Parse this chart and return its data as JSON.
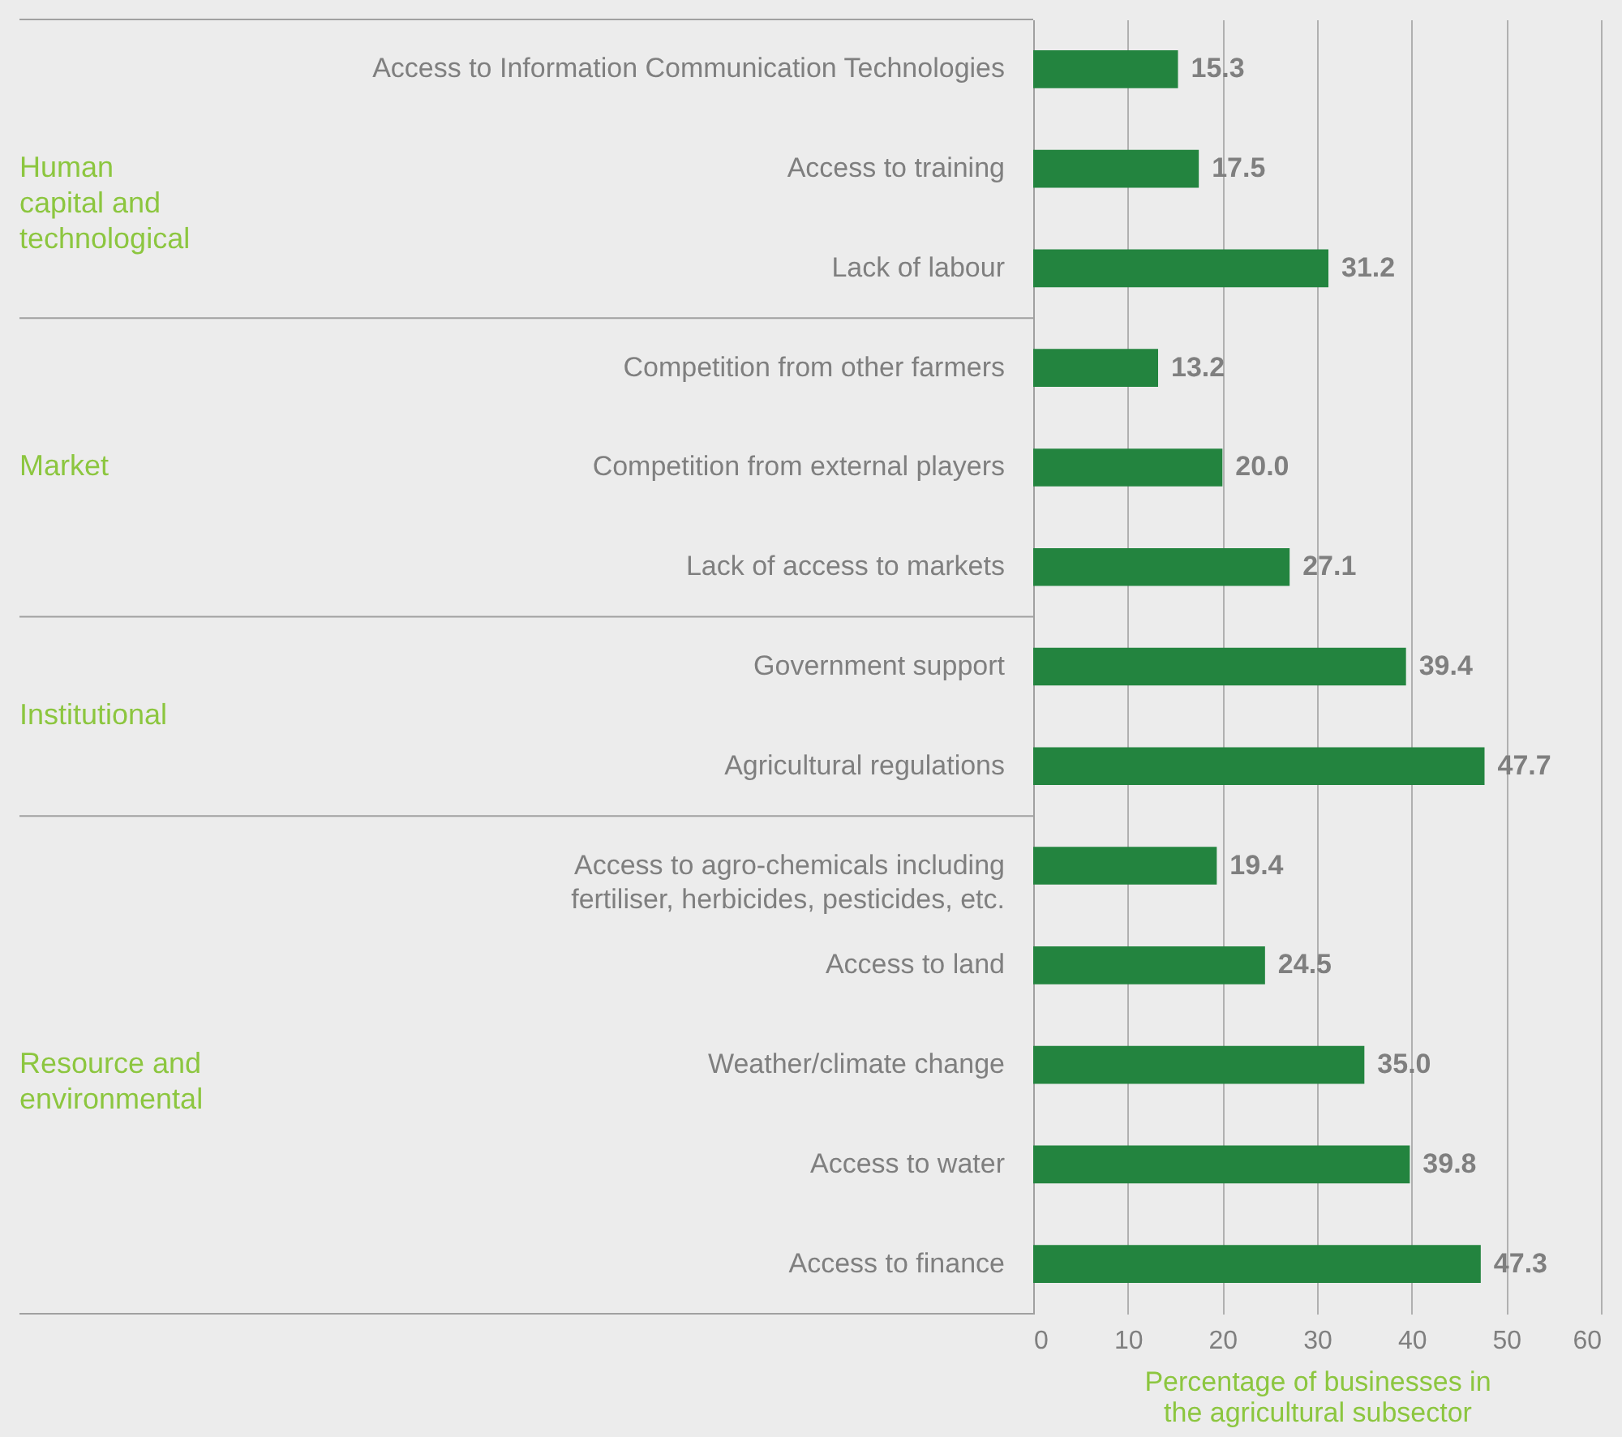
{
  "chart_data": {
    "type": "bar",
    "orientation": "horizontal",
    "categories": [
      "Access to Information Communication Technologies",
      "Access to training",
      "Lack of labour",
      "Competition from other farmers",
      "Competition from external players",
      "Lack of access to markets",
      "Government support",
      "Agricultural regulations",
      "Access to agro-chemicals including fertiliser, herbicides, pesticides, etc.",
      "Access to land",
      "Weather/climate change",
      "Access to water",
      "Access to finance"
    ],
    "values": [
      15.3,
      17.5,
      31.2,
      13.2,
      20.0,
      27.1,
      39.4,
      47.7,
      19.4,
      24.5,
      35.0,
      39.8,
      47.3
    ],
    "value_labels": [
      "15.3",
      "17.5",
      "31.2",
      "13.2",
      "20.0",
      "27.1",
      "39.4",
      "47.7",
      "19.4",
      "24.5",
      "35.0",
      "39.8",
      "47.3"
    ],
    "color": "#23843f",
    "xlabel": "Percentage of businesses in the agricultural subsector",
    "xlim": [
      0,
      60
    ],
    "xticks": [
      0,
      10,
      20,
      30,
      40,
      50,
      60
    ],
    "grid": "x",
    "annotations": [
      "Human capital and technological",
      "Market",
      "Institutional",
      "Resource and environmental"
    ]
  }
}
